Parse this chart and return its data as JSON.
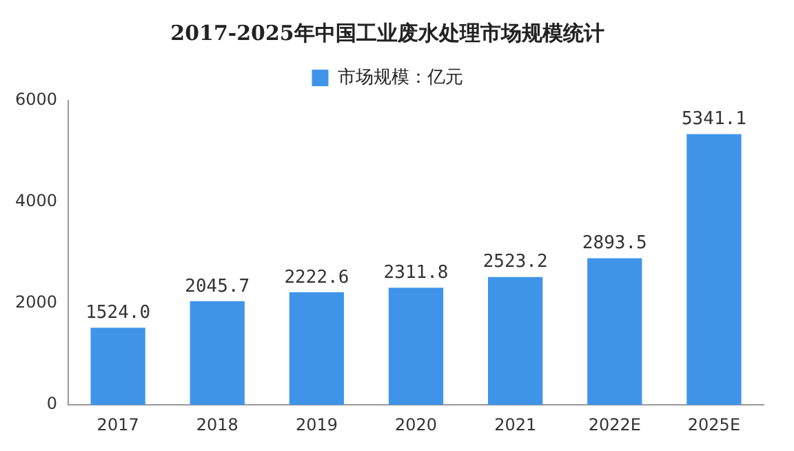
{
  "chart_data": {
    "type": "bar",
    "title": "2017-2025年中国工业废水处理市场规模统计",
    "categories": [
      "2017",
      "2018",
      "2019",
      "2020",
      "2021",
      "2022E",
      "2025E"
    ],
    "series": [
      {
        "name": "市场规模：亿元",
        "color": "#3f94ea",
        "values": [
          1524.0,
          2045.7,
          2222.6,
          2311.8,
          2523.2,
          2893.5,
          5341.1
        ],
        "value_labels": [
          "1524.0",
          "2045.7",
          "2222.6",
          "2311.8",
          "2523.2",
          "2893.5",
          "5341.1"
        ]
      }
    ],
    "ylim": [
      0,
      6000
    ],
    "yticks": [
      0,
      2000,
      4000,
      6000
    ],
    "grid": false,
    "legend": "top"
  }
}
